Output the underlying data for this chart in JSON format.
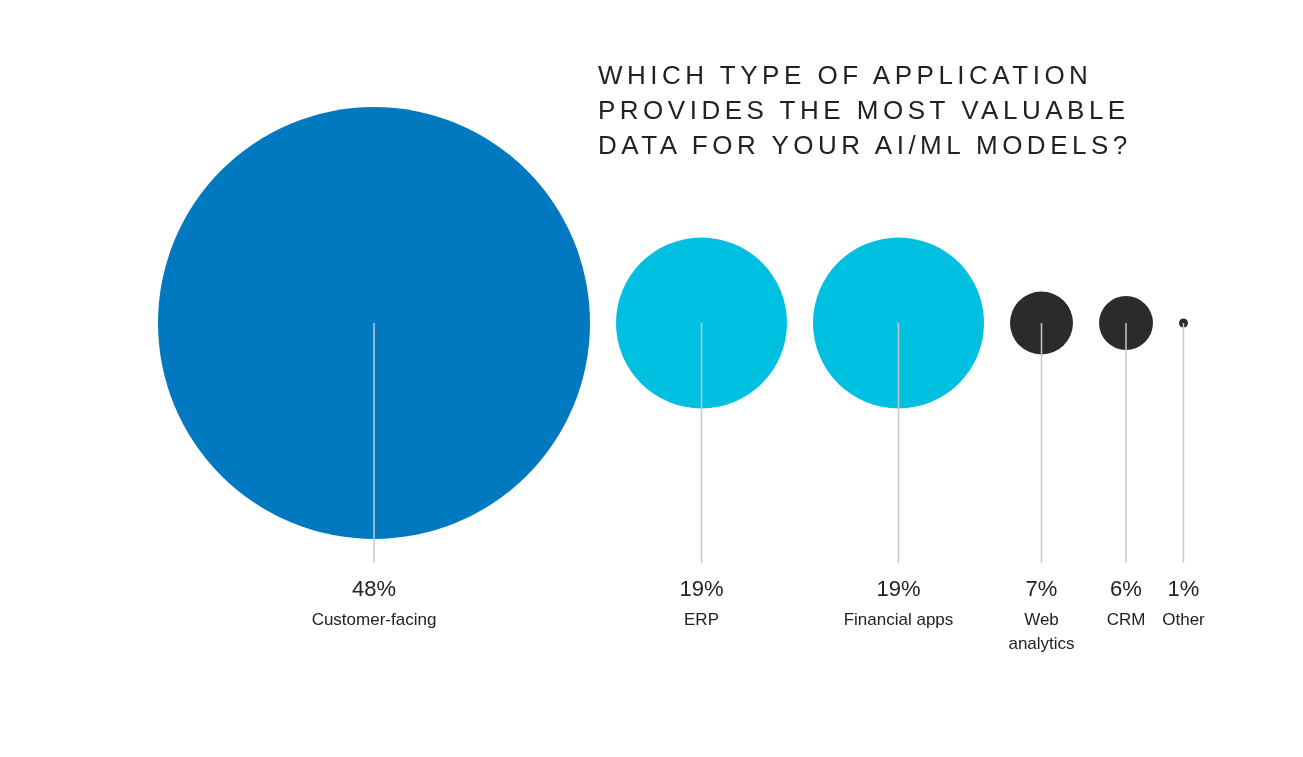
{
  "chart_data": {
    "type": "other",
    "title": "WHICH TYPE OF APPLICATION PROVIDES THE MOST VALUABLE DATA FOR YOUR AI/ML MODELS?",
    "categories": [
      "Customer-facing",
      "ERP",
      "Financial apps",
      "Web analytics",
      "CRM",
      "Other"
    ],
    "values": [
      48,
      19,
      19,
      7,
      6,
      1
    ],
    "colors": [
      "#0079c1",
      "#00c0e2",
      "#00c0e2",
      "#2b2b2b",
      "#2b2b2b",
      "#2b2b2b"
    ],
    "value_labels": [
      "48%",
      "19%",
      "19%",
      "7%",
      "6%",
      "1%"
    ]
  }
}
